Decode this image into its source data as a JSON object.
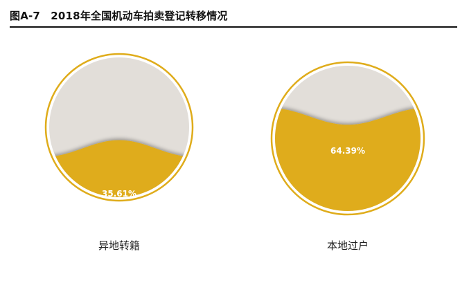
{
  "figure": {
    "title": "图A-7　2018年全国机动车拍卖登记转移情况"
  },
  "chart_data": [
    {
      "type": "liquid-fill gauge",
      "category": "异地转籍",
      "value_percent": 35.61,
      "value_label": "35.61%"
    },
    {
      "type": "liquid-fill gauge",
      "category": "本地过户",
      "value_percent": 64.39,
      "value_label": "64.39%"
    }
  ],
  "colors": {
    "fill": "#dfac1b",
    "ring": "#dfac1b",
    "background": "#e2ded9"
  }
}
